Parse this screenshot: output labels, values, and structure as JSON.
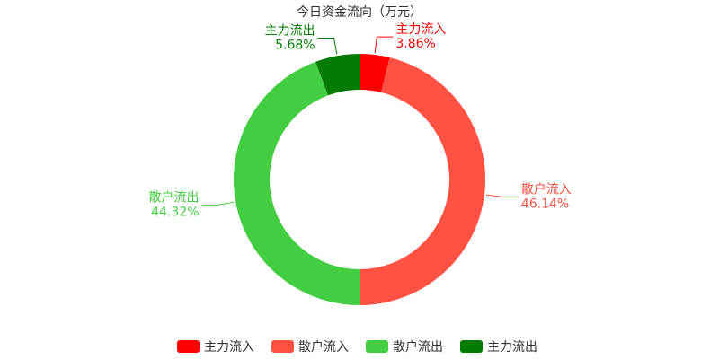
{
  "chart_data": {
    "type": "donut",
    "title": "今日资金流向（万元）",
    "categories": [
      "主力流入",
      "散户流入",
      "散户流出",
      "主力流出"
    ],
    "values": [
      3.86,
      46.14,
      44.32,
      5.68
    ],
    "value_labels": [
      "3.86%",
      "46.14%",
      "44.32%",
      "5.68%"
    ],
    "colors": [
      "#ff0000",
      "#ff5242",
      "#43cd43",
      "#047c04"
    ],
    "legend": "bottom"
  }
}
